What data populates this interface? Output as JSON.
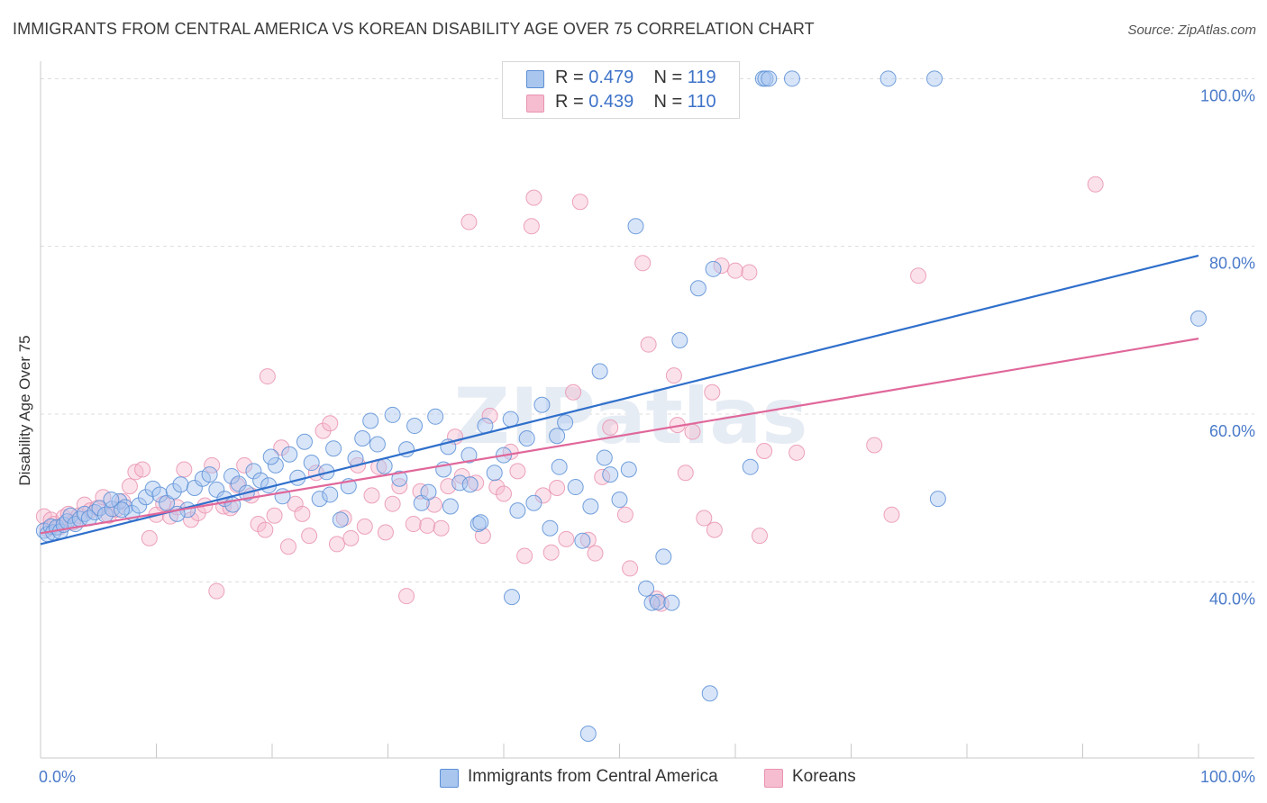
{
  "header": {
    "title": "IMMIGRANTS FROM CENTRAL AMERICA VS KOREAN DISABILITY AGE OVER 75 CORRELATION CHART",
    "source": "Source: ZipAtlas.com"
  },
  "watermark": {
    "text": "ZIPatlas"
  },
  "legend_top": {
    "rows": [
      {
        "r_label": "R = ",
        "r_value": "0.479",
        "n_label": "N = ",
        "n_value": "119"
      },
      {
        "r_label": "R = ",
        "r_value": "0.439",
        "n_label": "N = ",
        "n_value": "110"
      }
    ]
  },
  "colors": {
    "blue_fill": "#a9c6ef",
    "blue_stroke": "#5b8fd6",
    "blue_line": "#2f6fcb",
    "pink_fill": "#f6bcd0",
    "pink_stroke": "#e993b2",
    "pink_line": "#e0679a",
    "grid": "#dcdcdc",
    "axis_text": "#4a7ac9"
  },
  "chart_data": {
    "type": "scatter",
    "title": "IMMIGRANTS FROM CENTRAL AMERICA VS KOREAN DISABILITY AGE OVER 75 CORRELATION CHART",
    "xlabel": "",
    "ylabel": "Disability Age Over 75",
    "xlim": [
      0,
      100
    ],
    "ylim": [
      19,
      101
    ],
    "x_tick_labels": [
      "0.0%",
      "100.0%"
    ],
    "y_ticks": [
      40,
      60,
      80,
      100
    ],
    "y_tick_labels": [
      "40.0%",
      "60.0%",
      "80.0%",
      "100.0%"
    ],
    "grid": true,
    "legend_position": "top-center and bottom",
    "series": [
      {
        "name": "Immigrants from Central America",
        "color": "#5b8fd6",
        "r": 0.479,
        "n": 119,
        "trend": {
          "x": [
            0,
            100
          ],
          "y": [
            44.5,
            78.9
          ]
        },
        "points": [
          [
            0.3,
            46.1
          ],
          [
            0.6,
            45.7
          ],
          [
            0.9,
            46.6
          ],
          [
            1.1,
            45.9
          ],
          [
            1.4,
            46.5
          ],
          [
            1.7,
            46.0
          ],
          [
            2.0,
            46.8
          ],
          [
            2.3,
            47.2
          ],
          [
            2.6,
            47.9
          ],
          [
            3.0,
            46.9
          ],
          [
            3.4,
            47.5
          ],
          [
            3.8,
            48.1
          ],
          [
            4.2,
            47.6
          ],
          [
            4.7,
            48.3
          ],
          [
            5.1,
            48.8
          ],
          [
            5.6,
            48.0
          ],
          [
            6.2,
            48.7
          ],
          [
            6.8,
            49.6
          ],
          [
            7.3,
            48.9
          ],
          [
            7.9,
            48.2
          ],
          [
            8.5,
            49.1
          ],
          [
            9.1,
            50.1
          ],
          [
            9.7,
            51.1
          ],
          [
            10.3,
            50.4
          ],
          [
            10.9,
            49.4
          ],
          [
            11.5,
            50.8
          ],
          [
            12.1,
            51.6
          ],
          [
            12.7,
            48.6
          ],
          [
            13.3,
            51.2
          ],
          [
            14.0,
            52.3
          ],
          [
            14.6,
            52.8
          ],
          [
            15.2,
            51.0
          ],
          [
            15.9,
            49.9
          ],
          [
            16.5,
            52.6
          ],
          [
            17.1,
            51.7
          ],
          [
            17.8,
            50.6
          ],
          [
            18.4,
            53.2
          ],
          [
            19.0,
            52.1
          ],
          [
            19.7,
            51.5
          ],
          [
            20.3,
            53.9
          ],
          [
            20.9,
            50.2
          ],
          [
            21.5,
            55.2
          ],
          [
            22.2,
            52.4
          ],
          [
            22.8,
            56.7
          ],
          [
            23.4,
            54.2
          ],
          [
            24.1,
            49.9
          ],
          [
            24.7,
            53.1
          ],
          [
            25.3,
            55.9
          ],
          [
            25.9,
            47.4
          ],
          [
            26.6,
            51.4
          ],
          [
            27.2,
            54.7
          ],
          [
            27.8,
            57.1
          ],
          [
            28.5,
            59.2
          ],
          [
            29.1,
            56.4
          ],
          [
            29.7,
            53.8
          ],
          [
            30.4,
            59.9
          ],
          [
            31.0,
            52.3
          ],
          [
            31.6,
            55.8
          ],
          [
            32.3,
            58.6
          ],
          [
            32.9,
            49.4
          ],
          [
            33.5,
            50.7
          ],
          [
            34.1,
            59.7
          ],
          [
            34.8,
            53.4
          ],
          [
            35.4,
            49.0
          ],
          [
            36.2,
            51.8
          ],
          [
            37.0,
            55.1
          ],
          [
            37.8,
            46.9
          ],
          [
            38.4,
            58.6
          ],
          [
            39.2,
            53.0
          ],
          [
            40.0,
            55.1
          ],
          [
            40.6,
            59.4
          ],
          [
            41.2,
            48.5
          ],
          [
            42.0,
            57.1
          ],
          [
            42.6,
            49.4
          ],
          [
            43.3,
            61.1
          ],
          [
            44.0,
            46.4
          ],
          [
            44.6,
            57.4
          ],
          [
            45.3,
            59.0
          ],
          [
            46.2,
            51.3
          ],
          [
            46.8,
            44.9
          ],
          [
            47.5,
            49.0
          ],
          [
            48.3,
            65.1
          ],
          [
            49.2,
            52.8
          ],
          [
            50.0,
            49.8
          ],
          [
            50.8,
            53.4
          ],
          [
            51.4,
            82.4
          ],
          [
            52.3,
            39.2
          ],
          [
            52.8,
            37.5
          ],
          [
            53.3,
            37.6
          ],
          [
            53.8,
            43.0
          ],
          [
            54.5,
            37.5
          ],
          [
            55.2,
            68.8
          ],
          [
            56.8,
            75.0
          ],
          [
            57.8,
            26.7
          ],
          [
            58.1,
            77.3
          ],
          [
            59.4,
            100.0
          ],
          [
            61.3,
            53.7
          ],
          [
            62.4,
            100.0
          ],
          [
            62.6,
            100.0
          ],
          [
            62.9,
            100.0
          ],
          [
            64.9,
            100.0
          ],
          [
            73.2,
            100.0
          ],
          [
            77.2,
            100.0
          ],
          [
            77.5,
            49.9
          ],
          [
            100.0,
            71.4
          ],
          [
            57.2,
            97.9
          ],
          [
            48.7,
            54.8
          ],
          [
            37.1,
            51.6
          ],
          [
            47.3,
            21.9
          ],
          [
            40.7,
            38.2
          ],
          [
            7.0,
            48.6
          ],
          [
            11.8,
            48.1
          ],
          [
            25.0,
            50.4
          ],
          [
            35.2,
            56.1
          ],
          [
            38.0,
            47.1
          ],
          [
            44.8,
            53.7
          ],
          [
            16.6,
            49.2
          ],
          [
            19.9,
            54.9
          ],
          [
            6.1,
            49.8
          ]
        ]
      },
      {
        "name": "Koreans",
        "color": "#e993b2",
        "r": 0.439,
        "n": 110,
        "trend": {
          "x": [
            0,
            100
          ],
          "y": [
            45.8,
            69.0
          ]
        },
        "points": [
          [
            0.3,
            47.8
          ],
          [
            0.6,
            46.3
          ],
          [
            0.9,
            47.4
          ],
          [
            1.2,
            46.9
          ],
          [
            1.6,
            46.5
          ],
          [
            2.0,
            47.7
          ],
          [
            2.4,
            48.1
          ],
          [
            2.8,
            47.1
          ],
          [
            3.3,
            47.9
          ],
          [
            3.8,
            49.2
          ],
          [
            4.3,
            48.5
          ],
          [
            4.9,
            48.8
          ],
          [
            5.4,
            50.1
          ],
          [
            5.9,
            47.9
          ],
          [
            6.5,
            48.6
          ],
          [
            7.1,
            49.6
          ],
          [
            7.7,
            51.4
          ],
          [
            8.2,
            53.1
          ],
          [
            8.8,
            53.4
          ],
          [
            9.4,
            45.2
          ],
          [
            10.0,
            48.0
          ],
          [
            10.6,
            49.3
          ],
          [
            11.2,
            47.8
          ],
          [
            11.8,
            48.9
          ],
          [
            12.4,
            53.4
          ],
          [
            13.0,
            47.4
          ],
          [
            13.6,
            48.2
          ],
          [
            14.2,
            49.1
          ],
          [
            14.8,
            53.9
          ],
          [
            15.2,
            38.9
          ],
          [
            15.8,
            49.0
          ],
          [
            16.4,
            48.8
          ],
          [
            17.0,
            51.5
          ],
          [
            17.6,
            53.9
          ],
          [
            18.2,
            50.3
          ],
          [
            18.8,
            46.9
          ],
          [
            19.4,
            46.2
          ],
          [
            19.6,
            64.5
          ],
          [
            20.2,
            47.9
          ],
          [
            20.8,
            56.0
          ],
          [
            21.4,
            44.2
          ],
          [
            22.0,
            49.3
          ],
          [
            22.6,
            48.1
          ],
          [
            23.2,
            45.5
          ],
          [
            23.8,
            53.0
          ],
          [
            24.4,
            58.0
          ],
          [
            25.0,
            58.9
          ],
          [
            25.6,
            44.5
          ],
          [
            26.2,
            47.6
          ],
          [
            26.8,
            45.2
          ],
          [
            27.4,
            53.9
          ],
          [
            28.0,
            46.6
          ],
          [
            28.6,
            50.3
          ],
          [
            29.2,
            53.7
          ],
          [
            29.8,
            45.9
          ],
          [
            30.4,
            49.3
          ],
          [
            31.0,
            51.4
          ],
          [
            31.6,
            38.3
          ],
          [
            32.2,
            46.9
          ],
          [
            32.8,
            50.8
          ],
          [
            33.4,
            46.7
          ],
          [
            34.0,
            49.2
          ],
          [
            34.6,
            46.4
          ],
          [
            35.2,
            51.4
          ],
          [
            35.8,
            57.3
          ],
          [
            36.4,
            52.6
          ],
          [
            37.0,
            82.9
          ],
          [
            37.6,
            51.8
          ],
          [
            38.2,
            45.5
          ],
          [
            38.8,
            59.8
          ],
          [
            39.4,
            51.3
          ],
          [
            40.0,
            50.5
          ],
          [
            40.6,
            55.5
          ],
          [
            41.2,
            53.2
          ],
          [
            41.8,
            43.1
          ],
          [
            42.4,
            82.4
          ],
          [
            42.6,
            85.8
          ],
          [
            43.4,
            50.3
          ],
          [
            44.1,
            43.5
          ],
          [
            44.6,
            51.2
          ],
          [
            45.4,
            45.1
          ],
          [
            46.0,
            62.6
          ],
          [
            46.6,
            85.3
          ],
          [
            47.3,
            45.0
          ],
          [
            47.9,
            43.4
          ],
          [
            48.5,
            52.5
          ],
          [
            49.2,
            58.4
          ],
          [
            50.5,
            48.0
          ],
          [
            50.9,
            41.6
          ],
          [
            52.0,
            78.0
          ],
          [
            52.5,
            68.3
          ],
          [
            53.2,
            38.0
          ],
          [
            53.6,
            37.4
          ],
          [
            54.7,
            64.6
          ],
          [
            55.0,
            58.7
          ],
          [
            55.7,
            53.0
          ],
          [
            56.3,
            57.9
          ],
          [
            57.3,
            47.6
          ],
          [
            58.0,
            62.6
          ],
          [
            58.2,
            46.2
          ],
          [
            58.8,
            77.7
          ],
          [
            60.0,
            77.1
          ],
          [
            61.2,
            76.9
          ],
          [
            62.1,
            45.5
          ],
          [
            62.5,
            55.6
          ],
          [
            65.3,
            55.4
          ],
          [
            72.0,
            56.3
          ],
          [
            73.5,
            48.0
          ],
          [
            75.8,
            76.5
          ],
          [
            91.1,
            87.4
          ]
        ]
      }
    ]
  },
  "legend_bottom": {
    "items": [
      {
        "label": "Immigrants from Central America"
      },
      {
        "label": "Koreans"
      }
    ]
  }
}
